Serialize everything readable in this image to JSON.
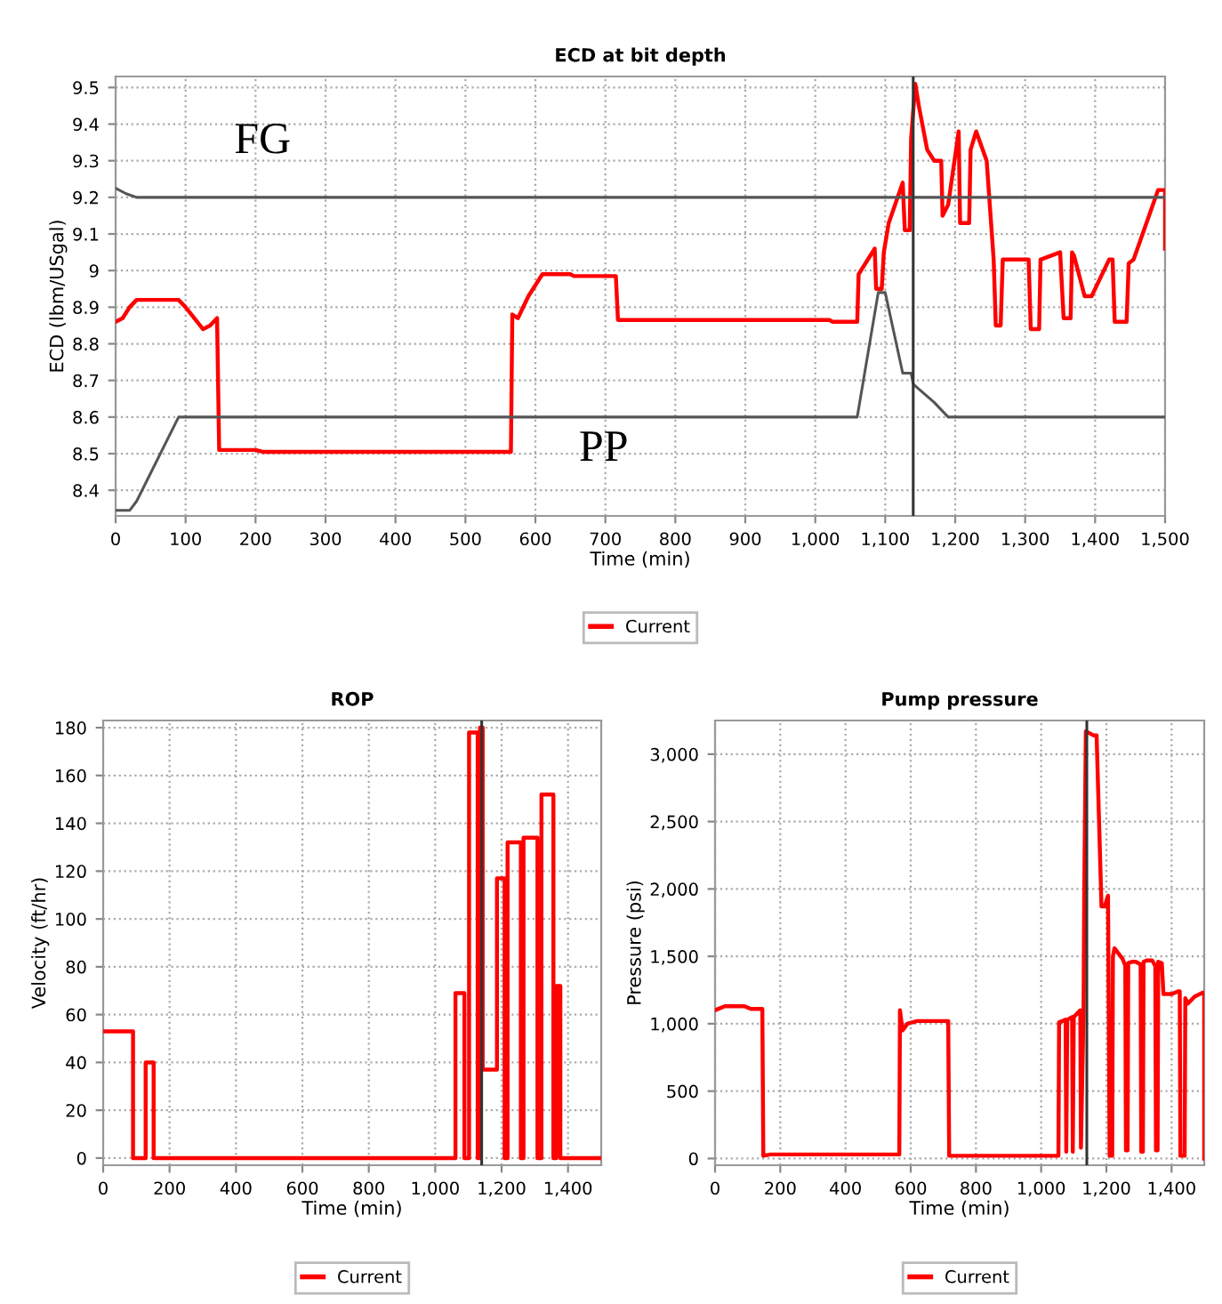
{
  "chart_data": [
    {
      "type": "line",
      "title": "ECD at bit depth",
      "xlabel": "Time (min)",
      "ylabel": "ECD (lbm/USgal)",
      "xlim": [
        0,
        1500
      ],
      "xticks": [
        0,
        100,
        200,
        300,
        400,
        500,
        600,
        700,
        800,
        900,
        {
          "value": 1000,
          "label": "1,000"
        },
        {
          "value": 1100,
          "label": "1,100"
        },
        {
          "value": 1200,
          "label": "1,200"
        },
        {
          "value": 1300,
          "label": "1,300"
        },
        {
          "value": 1400,
          "label": "1,400"
        },
        {
          "value": 1500,
          "label": "1,500"
        }
      ],
      "ylim": [
        8.33,
        9.53
      ],
      "yticks": [
        8.4,
        8.5,
        8.6,
        8.7,
        8.8,
        8.9,
        9,
        9.1,
        9.2,
        9.3,
        9.4,
        9.5
      ],
      "grid": true,
      "legend": "bottom",
      "line_style": "solid",
      "marker": "none",
      "ref_lines": [
        {
          "axis": "x",
          "value": 1140,
          "color": "#333333"
        }
      ],
      "annotations": [
        "FG",
        "PP"
      ],
      "series": [
        {
          "name": "Current",
          "color": "#ff0000",
          "x": [
            0,
            10,
            20,
            30,
            50,
            90,
            100,
            125,
            135,
            145,
            148,
            200,
            210,
            565,
            567,
            575,
            590,
            610,
            650,
            655,
            715,
            718,
            1020,
            1025,
            1060,
            1062,
            1085,
            1087,
            1095,
            1098,
            1105,
            1125,
            1128,
            1135,
            1137,
            1143,
            1148,
            1160,
            1170,
            1180,
            1182,
            1190,
            1205,
            1207,
            1220,
            1222,
            1230,
            1245,
            1255,
            1258,
            1265,
            1268,
            1305,
            1308,
            1320,
            1322,
            1350,
            1355,
            1365,
            1367,
            1370,
            1385,
            1395,
            1420,
            1425,
            1428,
            1445,
            1448,
            1455,
            1490,
            1500,
            1500
          ],
          "values": [
            8.86,
            8.87,
            8.9,
            8.92,
            8.92,
            8.92,
            8.9,
            8.84,
            8.85,
            8.87,
            8.51,
            8.51,
            8.505,
            8.505,
            8.88,
            8.87,
            8.93,
            8.99,
            8.99,
            8.985,
            8.985,
            8.865,
            8.865,
            8.86,
            8.86,
            8.99,
            9.06,
            8.95,
            8.95,
            9.05,
            9.13,
            9.24,
            9.11,
            9.11,
            9.36,
            9.51,
            9.45,
            9.33,
            9.3,
            9.3,
            9.15,
            9.18,
            9.38,
            9.13,
            9.13,
            9.33,
            9.38,
            9.3,
            9.03,
            8.85,
            8.85,
            9.03,
            9.03,
            8.84,
            8.84,
            9.03,
            9.05,
            8.87,
            8.87,
            9.05,
            9.04,
            8.93,
            8.93,
            9.03,
            9.03,
            8.86,
            8.86,
            9.02,
            9.03,
            9.22,
            9.22,
            9.06
          ]
        },
        {
          "color": "#555555",
          "x": [
            0,
            15,
            30,
            1500
          ],
          "values": [
            9.225,
            9.21,
            9.2,
            9.2
          ]
        },
        {
          "color": "#555555",
          "x": [
            0,
            20,
            30,
            90,
            1060,
            1090,
            1100,
            1125,
            1137,
            1140,
            1170,
            1190,
            1500
          ],
          "values": [
            8.345,
            8.345,
            8.37,
            8.6,
            8.6,
            8.94,
            8.94,
            8.72,
            8.72,
            8.69,
            8.64,
            8.6,
            8.6
          ]
        }
      ]
    },
    {
      "type": "line",
      "title": "ROP",
      "xlabel": "Time (min)",
      "ylabel": "Velocity (ft/hr)",
      "xlim": [
        0,
        1500
      ],
      "xticks": [
        0,
        200,
        400,
        600,
        800,
        {
          "value": 1000,
          "label": "1,000"
        },
        {
          "value": 1200,
          "label": "1,200"
        },
        {
          "value": 1400,
          "label": "1,400"
        }
      ],
      "ylim": [
        -3,
        183
      ],
      "yticks": [
        0,
        20,
        40,
        60,
        80,
        100,
        120,
        140,
        160,
        180
      ],
      "grid": true,
      "legend": "bottom",
      "line_style": "solid",
      "marker": "none",
      "ref_lines": [
        {
          "axis": "x",
          "value": 1140,
          "color": "#333333"
        }
      ],
      "series": [
        {
          "name": "Current",
          "color": "#ff0000",
          "x": [
            0,
            90,
            90,
            128,
            128,
            152,
            152,
            1061,
            1061,
            1088,
            1088,
            1102,
            1102,
            1128,
            1128,
            1135,
            1135,
            1143,
            1143,
            1186,
            1186,
            1209,
            1209,
            1218,
            1218,
            1258,
            1258,
            1266,
            1266,
            1308,
            1308,
            1320,
            1320,
            1356,
            1356,
            1365,
            1365,
            1377,
            1377,
            1500
          ],
          "values": [
            53,
            53,
            0,
            0,
            40,
            40,
            0,
            0,
            69,
            69,
            0,
            0,
            178,
            178,
            0,
            0,
            180,
            180,
            37,
            37,
            117,
            117,
            0,
            0,
            132,
            132,
            0,
            0,
            134,
            134,
            0,
            0,
            152,
            152,
            0,
            0,
            72,
            72,
            0,
            0
          ]
        }
      ]
    },
    {
      "type": "line",
      "title": "Pump pressure",
      "xlabel": "Time (min)",
      "ylabel": "Pressure (psi)",
      "xlim": [
        0,
        1500
      ],
      "xticks": [
        0,
        200,
        400,
        600,
        800,
        {
          "value": 1000,
          "label": "1,000"
        },
        {
          "value": 1200,
          "label": "1,200"
        },
        {
          "value": 1400,
          "label": "1,400"
        }
      ],
      "ylim": [
        -50,
        3250
      ],
      "yticks": [
        0,
        500,
        {
          "value": 1000,
          "label": "1,000"
        },
        {
          "value": 1500,
          "label": "1,500"
        },
        {
          "value": 2000,
          "label": "2,000"
        },
        {
          "value": 2500,
          "label": "2,500"
        },
        {
          "value": 3000,
          "label": "3,000"
        }
      ],
      "grid": true,
      "legend": "bottom",
      "line_style": "solid",
      "marker": "none",
      "ref_lines": [
        {
          "axis": "x",
          "value": 1140,
          "color": "#333333"
        }
      ],
      "series": [
        {
          "name": "Current",
          "color": "#ff0000",
          "x": [
            0,
            30,
            90,
            110,
            145,
            148,
            170,
            565,
            567,
            575,
            590,
            620,
            715,
            718,
            1053,
            1055,
            1075,
            1077,
            1080,
            1095,
            1097,
            1100,
            1120,
            1122,
            1130,
            1132,
            1137,
            1145,
            1160,
            1170,
            1185,
            1195,
            1205,
            1210,
            1218,
            1220,
            1225,
            1250,
            1258,
            1260,
            1265,
            1267,
            1280,
            1290,
            1305,
            1307,
            1312,
            1314,
            1325,
            1340,
            1350,
            1352,
            1357,
            1359,
            1370,
            1375,
            1400,
            1420,
            1425,
            1427,
            1440,
            1442,
            1450,
            1470,
            1495,
            1500,
            1500
          ],
          "values": [
            1100,
            1130,
            1130,
            1110,
            1110,
            20,
            30,
            30,
            1100,
            950,
            1000,
            1020,
            1020,
            20,
            20,
            1010,
            1030,
            50,
            1030,
            1050,
            50,
            1050,
            1100,
            80,
            1100,
            1950,
            3170,
            3160,
            3140,
            3140,
            1870,
            1870,
            1950,
            20,
            20,
            1500,
            1560,
            1480,
            1430,
            60,
            60,
            1450,
            1460,
            1460,
            1440,
            50,
            50,
            1460,
            1470,
            1470,
            1430,
            60,
            60,
            1460,
            1450,
            1220,
            1220,
            1240,
            1240,
            20,
            20,
            1190,
            1150,
            1200,
            1230,
            1230,
            0
          ]
        }
      ]
    }
  ]
}
